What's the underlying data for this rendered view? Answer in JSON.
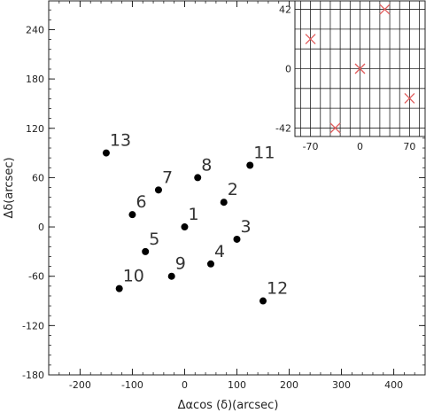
{
  "chart_data": [
    {
      "type": "scatter",
      "title": "",
      "xlabel": "Δαcos (δ)(arcsec)",
      "ylabel": "Δδ(arcsec)",
      "xlim": [
        -260,
        460
      ],
      "ylim": [
        -180,
        275
      ],
      "xticks": [
        -200,
        -100,
        0,
        100,
        200,
        300,
        400
      ],
      "yticks": [
        -180,
        -120,
        -60,
        0,
        60,
        120,
        180,
        240
      ],
      "grid": false,
      "marker": "filled-circle",
      "marker_color": "#000000",
      "points": [
        {
          "label": "1",
          "x": 0,
          "y": 0
        },
        {
          "label": "2",
          "x": 75,
          "y": 30
        },
        {
          "label": "3",
          "x": 100,
          "y": -15
        },
        {
          "label": "4",
          "x": 50,
          "y": -45
        },
        {
          "label": "5",
          "x": -75,
          "y": -30
        },
        {
          "label": "6",
          "x": -100,
          "y": 15
        },
        {
          "label": "7",
          "x": -50,
          "y": 45
        },
        {
          "label": "8",
          "x": 25,
          "y": 60
        },
        {
          "label": "9",
          "x": -25,
          "y": -60
        },
        {
          "label": "10",
          "x": -125,
          "y": -75
        },
        {
          "label": "11",
          "x": 125,
          "y": 75
        },
        {
          "label": "12",
          "x": 150,
          "y": -90
        },
        {
          "label": "13",
          "x": -150,
          "y": 90
        }
      ]
    },
    {
      "type": "scatter",
      "title": "",
      "xlabel": "",
      "ylabel": "",
      "xlim": [
        -92,
        92
      ],
      "ylim": [
        -48,
        48
      ],
      "xticks": [
        -70,
        0,
        70
      ],
      "yticks": [
        -42,
        0,
        42
      ],
      "grid": true,
      "marker": "x",
      "marker_color": "#e05a5a",
      "points": [
        {
          "x": 0,
          "y": 0
        },
        {
          "x": -70,
          "y": 21
        },
        {
          "x": 35,
          "y": 42
        },
        {
          "x": 70,
          "y": -21
        },
        {
          "x": -35,
          "y": -42
        }
      ]
    }
  ]
}
